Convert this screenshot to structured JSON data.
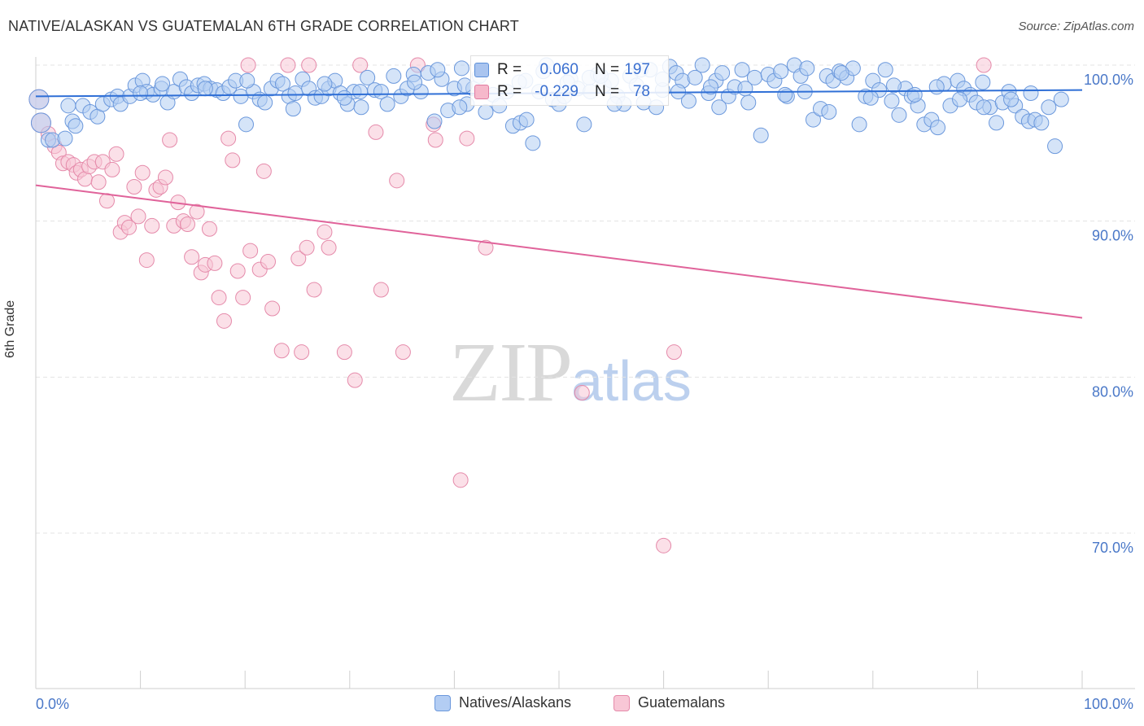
{
  "title": "NATIVE/ALASKAN VS GUATEMALAN 6TH GRADE CORRELATION CHART",
  "source": "Source: ZipAtlas.com",
  "watermark": {
    "zip": "ZIP",
    "atlas": "atlas"
  },
  "stats": [
    {
      "r_label": "R =",
      "r_value": "0.060",
      "n_label": "N =",
      "n_value": "197",
      "color": "#a9c4ef",
      "stroke": "#5b8fd9"
    },
    {
      "r_label": "R =",
      "r_value": "-0.229",
      "n_label": "N =",
      "n_value": "78",
      "color": "#f6b8cb",
      "stroke": "#e07aa0"
    }
  ],
  "legend": [
    {
      "label": "Natives/Alaskans",
      "color": "#b3cdf3",
      "stroke": "#6b98dc"
    },
    {
      "label": "Guatemalans",
      "color": "#f8c7d6",
      "stroke": "#e58aaa"
    }
  ],
  "chart_data": {
    "type": "scatter",
    "title": "NATIVE/ALASKAN VS GUATEMALAN 6TH GRADE CORRELATION CHART",
    "xlabel": "",
    "ylabel": "6th Grade",
    "xlim": [
      0,
      100
    ],
    "ylim": [
      59,
      101
    ],
    "x_tick_labels": [
      "0.0%",
      "100.0%"
    ],
    "y_ticks": [
      100,
      90,
      80,
      70
    ],
    "y_tick_labels": [
      "100.0%",
      "90.0%",
      "80.0%",
      "70.0%"
    ],
    "grid": true,
    "legend_position": "bottom",
    "series": [
      {
        "name": "Natives/Alaskans",
        "color": "#6b98dc",
        "fill": "#b3cdf3",
        "trend": {
          "x": [
            0,
            100
          ],
          "y": [
            98.0,
            98.4
          ]
        },
        "points": [
          [
            0.3,
            97.8
          ],
          [
            0.5,
            96.3
          ],
          [
            1.2,
            95.2
          ],
          [
            1.6,
            95.2
          ],
          [
            2.8,
            95.3
          ],
          [
            3.5,
            96.4
          ],
          [
            3.8,
            96.1
          ],
          [
            4.5,
            97.4
          ],
          [
            5.2,
            97.0
          ],
          [
            5.9,
            96.7
          ],
          [
            6.4,
            97.5
          ],
          [
            7.2,
            97.8
          ],
          [
            7.8,
            98.0
          ],
          [
            8.1,
            97.5
          ],
          [
            9.0,
            98.0
          ],
          [
            9.5,
            98.7
          ],
          [
            10.2,
            99.0
          ],
          [
            10.6,
            98.3
          ],
          [
            11.2,
            98.1
          ],
          [
            12.0,
            98.5
          ],
          [
            12.6,
            97.6
          ],
          [
            13.2,
            98.3
          ],
          [
            13.8,
            99.1
          ],
          [
            14.4,
            98.6
          ],
          [
            14.9,
            98.2
          ],
          [
            15.5,
            98.7
          ],
          [
            16.1,
            98.8
          ],
          [
            16.7,
            98.5
          ],
          [
            17.3,
            98.4
          ],
          [
            17.9,
            98.2
          ],
          [
            18.5,
            98.6
          ],
          [
            19.1,
            99.0
          ],
          [
            19.6,
            98.0
          ],
          [
            20.1,
            96.2
          ],
          [
            20.8,
            98.3
          ],
          [
            21.4,
            97.8
          ],
          [
            21.9,
            97.6
          ],
          [
            22.5,
            98.5
          ],
          [
            23.1,
            99.0
          ],
          [
            23.6,
            98.8
          ],
          [
            24.2,
            98.0
          ],
          [
            24.8,
            98.2
          ],
          [
            25.5,
            99.1
          ],
          [
            26.1,
            98.5
          ],
          [
            26.7,
            97.9
          ],
          [
            27.3,
            98.0
          ],
          [
            28.0,
            98.5
          ],
          [
            28.6,
            99.0
          ],
          [
            29.1,
            98.2
          ],
          [
            29.8,
            97.5
          ],
          [
            30.4,
            98.3
          ],
          [
            31.1,
            97.3
          ],
          [
            31.7,
            99.2
          ],
          [
            32.4,
            98.4
          ],
          [
            33.0,
            98.3
          ],
          [
            33.6,
            97.5
          ],
          [
            34.2,
            99.3
          ],
          [
            34.9,
            98.0
          ],
          [
            35.5,
            98.5
          ],
          [
            36.1,
            99.4
          ],
          [
            36.8,
            98.3
          ],
          [
            37.5,
            99.5
          ],
          [
            38.1,
            96.4
          ],
          [
            38.8,
            99.1
          ],
          [
            39.4,
            97.1
          ],
          [
            40.0,
            98.5
          ],
          [
            40.7,
            99.8
          ],
          [
            41.2,
            97.5
          ],
          [
            41.8,
            98.5
          ],
          [
            42.4,
            99.3
          ],
          [
            43.0,
            97.0
          ],
          [
            43.7,
            98.1
          ],
          [
            44.3,
            97.4
          ],
          [
            45.0,
            98.3
          ],
          [
            45.6,
            96.1
          ],
          [
            46.3,
            96.3
          ],
          [
            46.8,
            99.0
          ],
          [
            47.5,
            95.0
          ],
          [
            48.1,
            98.3
          ],
          [
            48.8,
            100.0
          ],
          [
            49.4,
            97.8
          ],
          [
            50.0,
            97.5
          ],
          [
            50.5,
            98.0
          ],
          [
            51.1,
            99.1
          ],
          [
            51.8,
            98.5
          ],
          [
            52.4,
            96.2
          ],
          [
            53.0,
            98.3
          ],
          [
            53.7,
            99.4
          ],
          [
            54.3,
            98.7
          ],
          [
            55.0,
            99.0
          ],
          [
            55.6,
            98.0
          ],
          [
            56.2,
            97.5
          ],
          [
            56.8,
            99.3
          ],
          [
            57.4,
            98.7
          ],
          [
            58.1,
            97.6
          ],
          [
            58.7,
            99.7
          ],
          [
            59.3,
            97.3
          ],
          [
            59.9,
            98.4
          ],
          [
            60.6,
            99.9
          ],
          [
            61.2,
            99.5
          ],
          [
            61.8,
            99.0
          ],
          [
            62.4,
            97.7
          ],
          [
            63.0,
            99.2
          ],
          [
            63.7,
            100.0
          ],
          [
            64.3,
            98.2
          ],
          [
            65.0,
            99.0
          ],
          [
            65.6,
            99.5
          ],
          [
            66.2,
            98.0
          ],
          [
            66.8,
            98.6
          ],
          [
            67.5,
            99.7
          ],
          [
            68.1,
            97.6
          ],
          [
            68.7,
            99.2
          ],
          [
            69.3,
            95.5
          ],
          [
            70.0,
            99.4
          ],
          [
            70.6,
            99.0
          ],
          [
            71.2,
            99.6
          ],
          [
            71.8,
            98.0
          ],
          [
            72.5,
            100.0
          ],
          [
            73.1,
            99.3
          ],
          [
            73.7,
            99.8
          ],
          [
            74.3,
            96.5
          ],
          [
            75.0,
            97.2
          ],
          [
            75.6,
            99.3
          ],
          [
            76.2,
            99.0
          ],
          [
            76.8,
            99.6
          ],
          [
            77.5,
            99.2
          ],
          [
            78.1,
            99.8
          ],
          [
            78.7,
            96.2
          ],
          [
            79.3,
            98.0
          ],
          [
            80.0,
            99.0
          ],
          [
            80.6,
            98.4
          ],
          [
            81.2,
            99.7
          ],
          [
            81.8,
            97.7
          ],
          [
            82.5,
            96.8
          ],
          [
            83.1,
            98.5
          ],
          [
            83.7,
            98.0
          ],
          [
            84.3,
            97.4
          ],
          [
            84.9,
            96.2
          ],
          [
            85.6,
            96.5
          ],
          [
            86.2,
            96.0
          ],
          [
            86.8,
            98.8
          ],
          [
            87.4,
            97.4
          ],
          [
            88.1,
            99.0
          ],
          [
            88.7,
            98.5
          ],
          [
            89.3,
            98.1
          ],
          [
            89.9,
            97.6
          ],
          [
            90.5,
            98.9
          ],
          [
            91.2,
            97.3
          ],
          [
            91.8,
            96.3
          ],
          [
            92.4,
            97.6
          ],
          [
            93.0,
            98.3
          ],
          [
            93.6,
            97.4
          ],
          [
            94.3,
            96.7
          ],
          [
            94.9,
            96.4
          ],
          [
            95.5,
            96.5
          ],
          [
            96.1,
            96.3
          ],
          [
            96.8,
            97.3
          ],
          [
            97.4,
            94.8
          ],
          [
            98.0,
            97.8
          ],
          [
            46.2,
            98.9
          ],
          [
            16.2,
            98.5
          ],
          [
            31.0,
            98.3
          ],
          [
            46.9,
            96.5
          ],
          [
            52.9,
            99.2
          ],
          [
            20.2,
            99.0
          ],
          [
            54.0,
            99.3
          ],
          [
            64.5,
            98.6
          ],
          [
            75.8,
            97.0
          ],
          [
            82.0,
            98.7
          ],
          [
            90.6,
            97.3
          ],
          [
            27.6,
            98.8
          ],
          [
            38.4,
            99.7
          ],
          [
            55.3,
            97.5
          ],
          [
            61.4,
            98.3
          ],
          [
            71.6,
            98.1
          ],
          [
            86.1,
            98.6
          ],
          [
            93.2,
            97.8
          ],
          [
            10.0,
            98.2
          ],
          [
            36.2,
            98.9
          ],
          [
            48.5,
            99.6
          ],
          [
            65.3,
            97.3
          ],
          [
            77.0,
            99.5
          ],
          [
            84.0,
            98.1
          ],
          [
            12.1,
            98.8
          ],
          [
            29.5,
            97.9
          ],
          [
            41.0,
            98.7
          ],
          [
            59.9,
            99.1
          ],
          [
            73.5,
            98.3
          ],
          [
            95.1,
            98.2
          ],
          [
            24.6,
            97.2
          ],
          [
            50.8,
            98.9
          ],
          [
            67.8,
            98.5
          ],
          [
            79.8,
            97.9
          ],
          [
            3.1,
            97.4
          ],
          [
            57.8,
            99.7
          ],
          [
            40.5,
            97.3
          ],
          [
            88.3,
            97.8
          ]
        ]
      },
      {
        "name": "Guatemalans",
        "color": "#e58aaa",
        "fill": "#f8c7d6",
        "trend": {
          "x": [
            0,
            100
          ],
          "y": [
            92.3,
            83.8
          ]
        },
        "points": [
          [
            0.3,
            97.8
          ],
          [
            0.5,
            96.3
          ],
          [
            1.2,
            95.6
          ],
          [
            1.8,
            94.8
          ],
          [
            2.2,
            94.4
          ],
          [
            2.6,
            93.7
          ],
          [
            3.1,
            93.8
          ],
          [
            3.6,
            93.6
          ],
          [
            3.9,
            93.1
          ],
          [
            4.3,
            93.3
          ],
          [
            4.7,
            92.7
          ],
          [
            5.1,
            93.5
          ],
          [
            5.6,
            93.8
          ],
          [
            6.0,
            92.5
          ],
          [
            6.4,
            93.8
          ],
          [
            6.8,
            91.3
          ],
          [
            7.3,
            93.3
          ],
          [
            7.7,
            94.3
          ],
          [
            8.1,
            89.3
          ],
          [
            8.5,
            89.9
          ],
          [
            8.9,
            89.6
          ],
          [
            9.4,
            92.2
          ],
          [
            9.8,
            90.3
          ],
          [
            10.2,
            93.1
          ],
          [
            10.6,
            87.5
          ],
          [
            11.1,
            89.7
          ],
          [
            11.5,
            92.0
          ],
          [
            11.9,
            92.2
          ],
          [
            12.4,
            92.8
          ],
          [
            12.8,
            95.2
          ],
          [
            13.2,
            89.7
          ],
          [
            13.6,
            91.2
          ],
          [
            14.1,
            90.0
          ],
          [
            14.5,
            89.8
          ],
          [
            14.9,
            87.7
          ],
          [
            15.4,
            90.6
          ],
          [
            15.8,
            86.7
          ],
          [
            16.2,
            87.2
          ],
          [
            16.6,
            89.5
          ],
          [
            17.1,
            87.3
          ],
          [
            17.5,
            85.1
          ],
          [
            18.0,
            83.6
          ],
          [
            18.4,
            95.3
          ],
          [
            18.8,
            93.9
          ],
          [
            19.3,
            86.8
          ],
          [
            19.8,
            85.1
          ],
          [
            20.3,
            100.0
          ],
          [
            21.4,
            86.9
          ],
          [
            21.8,
            93.2
          ],
          [
            22.2,
            87.4
          ],
          [
            22.6,
            84.4
          ],
          [
            23.5,
            81.7
          ],
          [
            24.1,
            100.0
          ],
          [
            25.1,
            87.6
          ],
          [
            25.4,
            81.6
          ],
          [
            25.9,
            88.3
          ],
          [
            26.1,
            100.0
          ],
          [
            26.6,
            85.6
          ],
          [
            27.6,
            89.3
          ],
          [
            28.0,
            88.3
          ],
          [
            29.5,
            81.6
          ],
          [
            30.5,
            79.8
          ],
          [
            31.0,
            100.0
          ],
          [
            32.5,
            95.7
          ],
          [
            33.0,
            85.6
          ],
          [
            34.5,
            92.6
          ],
          [
            35.1,
            81.6
          ],
          [
            36.5,
            100.0
          ],
          [
            38.0,
            96.2
          ],
          [
            38.2,
            95.2
          ],
          [
            40.6,
            73.4
          ],
          [
            41.2,
            95.3
          ],
          [
            43.0,
            88.3
          ],
          [
            52.2,
            79.0
          ],
          [
            60.0,
            69.2
          ],
          [
            61.0,
            81.6
          ],
          [
            90.6,
            100.0
          ],
          [
            20.5,
            88.1
          ]
        ]
      }
    ]
  }
}
